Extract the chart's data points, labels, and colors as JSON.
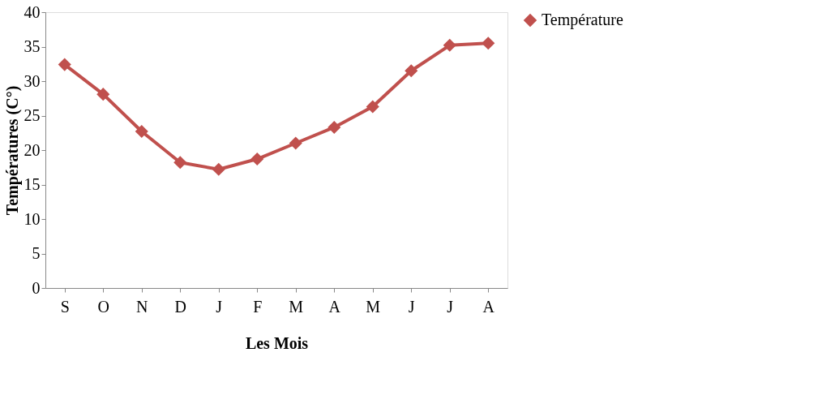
{
  "chart_data": {
    "type": "line",
    "xlabel": "Les Mois",
    "ylabel": "Températures (C°)",
    "categories": [
      "S",
      "O",
      "N",
      "D",
      "J",
      "F",
      "M",
      "A",
      "M",
      "J",
      "J",
      "A"
    ],
    "series": [
      {
        "name": "Température",
        "color": "#c0504d",
        "values": [
          32.4,
          28.1,
          22.7,
          18.2,
          17.2,
          18.7,
          21.0,
          23.3,
          26.3,
          31.5,
          35.2,
          35.5
        ]
      }
    ],
    "ylim": [
      0,
      40
    ],
    "yticks": [
      0,
      5,
      10,
      15,
      20,
      25,
      30,
      35,
      40
    ],
    "grid": false,
    "legend": "right",
    "marker": "diamond",
    "line_style": "solid"
  }
}
